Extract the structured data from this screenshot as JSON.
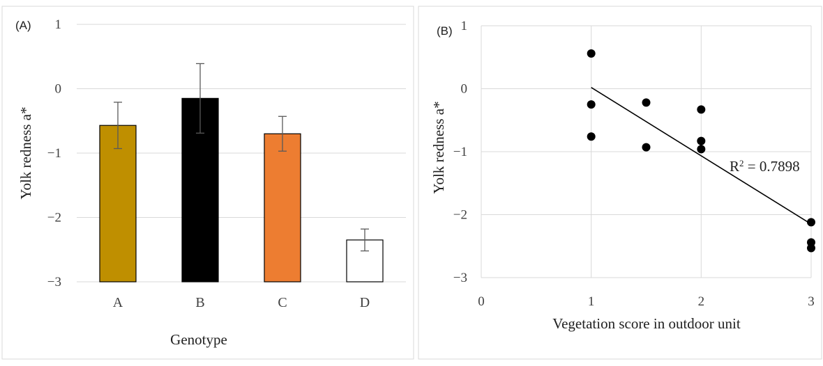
{
  "chart_data": [
    {
      "type": "bar",
      "panel_label": "(A)",
      "xlabel": "Genotype",
      "ylabel": "Yolk redness a*",
      "ylim": [
        -3,
        1
      ],
      "yticks": [
        "1",
        "0",
        "−1",
        "−2",
        "−3"
      ],
      "categories": [
        "A",
        "B",
        "C",
        "D"
      ],
      "values": [
        -0.57,
        -0.15,
        -0.7,
        -2.35
      ],
      "error": [
        0.36,
        0.54,
        0.27,
        0.17
      ],
      "colors": [
        "#BF8F00",
        "#000000",
        "#ED7D31",
        "#FFFFFF"
      ],
      "grid": "horizontal"
    },
    {
      "type": "scatter",
      "panel_label": "(B)",
      "xlabel": "Vegetation score in outdoor unit",
      "ylabel": "Yolk redness a*",
      "xlim": [
        0,
        3
      ],
      "ylim": [
        -3,
        1
      ],
      "xticks": [
        "0",
        "1",
        "2",
        "3"
      ],
      "yticks": [
        "1",
        "0",
        "−1",
        "−2",
        "−3"
      ],
      "points": [
        {
          "x": 1,
          "y": 0.56
        },
        {
          "x": 1,
          "y": -0.25
        },
        {
          "x": 1,
          "y": -0.76
        },
        {
          "x": 1.5,
          "y": -0.22
        },
        {
          "x": 1.5,
          "y": -0.93
        },
        {
          "x": 2,
          "y": -0.33
        },
        {
          "x": 2,
          "y": -0.83
        },
        {
          "x": 2,
          "y": -0.96
        },
        {
          "x": 3,
          "y": -2.12
        },
        {
          "x": 3,
          "y": -2.44
        },
        {
          "x": 3,
          "y": -2.53
        }
      ],
      "trendline": {
        "x": [
          1,
          3
        ],
        "y": [
          0.02,
          -2.15
        ]
      },
      "annotation": {
        "prefix": "R",
        "sup": "2",
        "text": " = 0.7898"
      },
      "grid": "both"
    }
  ]
}
